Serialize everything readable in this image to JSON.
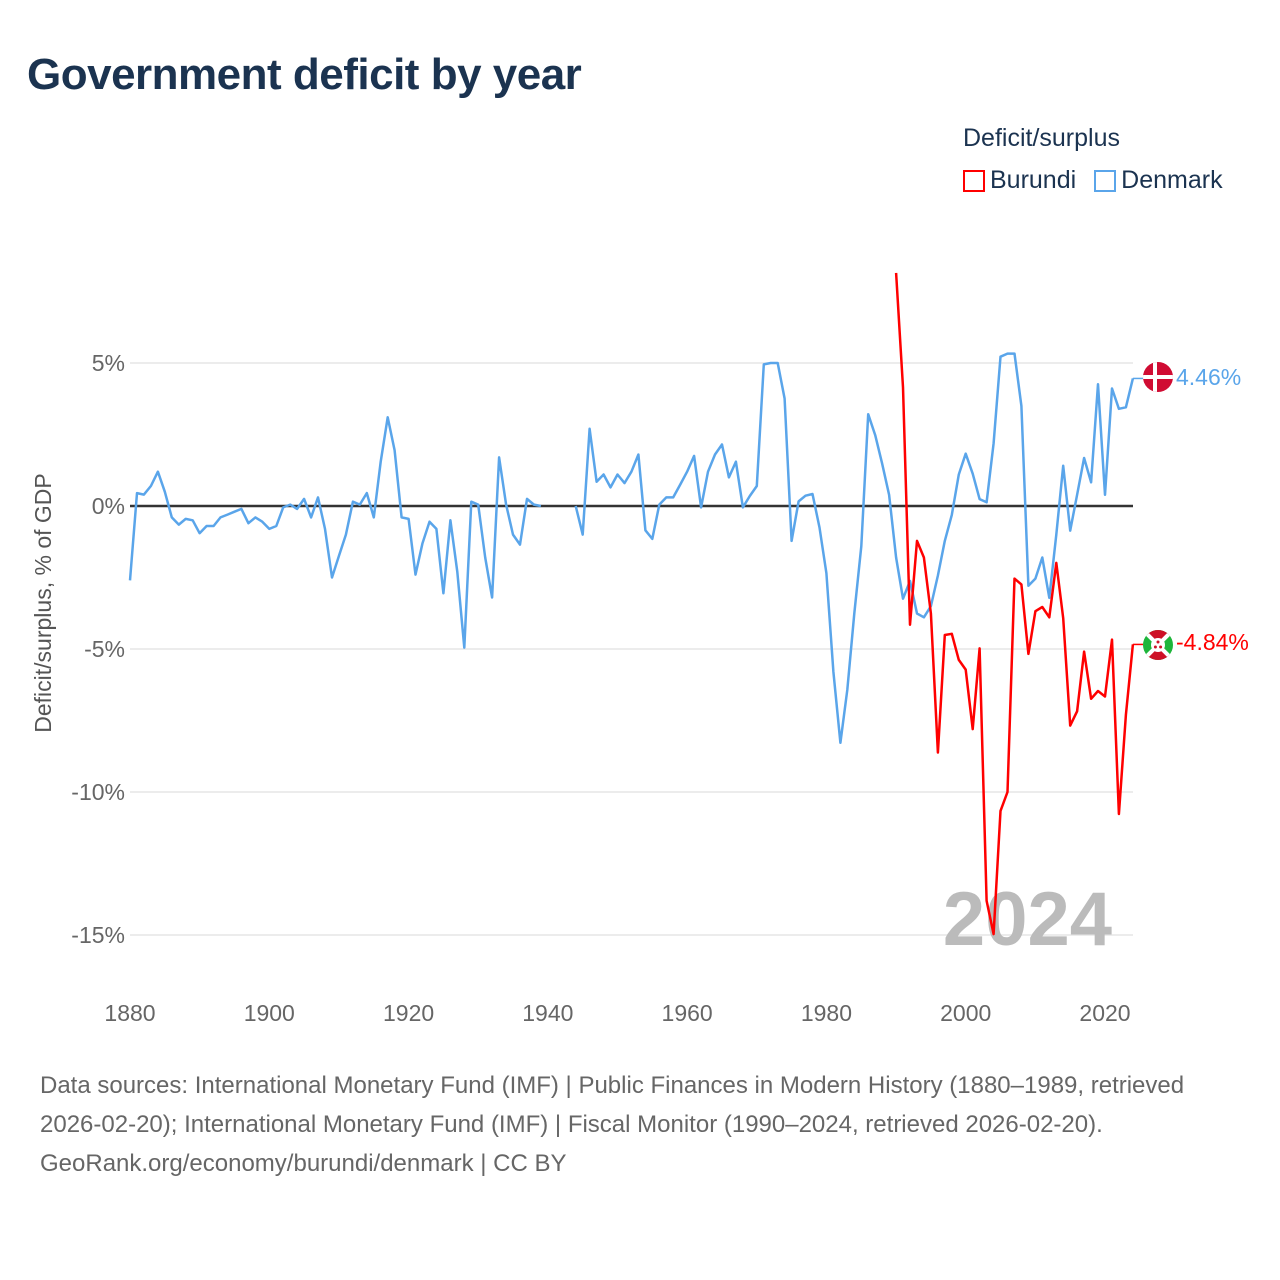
{
  "title": "Government deficit by year",
  "legend": {
    "title": "Deficit/surplus",
    "items": [
      {
        "label": "Burundi",
        "color": "#ff0000"
      },
      {
        "label": "Denmark",
        "color": "#5aa5ea"
      }
    ]
  },
  "year_watermark": "2024",
  "footer": {
    "sources": "Data sources: International Monetary Fund (IMF) | Public Finances in Modern History (1880–1989, retrieved 2026-02-20); International Monetary Fund (IMF) | Fiscal Monitor (1990–2024, retrieved 2026-02-20).",
    "credit": "GeoRank.org/economy/burundi/denmark | CC BY"
  },
  "chart_data": {
    "type": "line",
    "title": "Government deficit by year",
    "xlabel": "",
    "ylabel": "Deficit/surplus, % of GDP",
    "xlim": [
      1880,
      2024
    ],
    "ylim": [
      -15,
      8.2
    ],
    "x_ticks": [
      1880,
      1900,
      1920,
      1940,
      1960,
      1980,
      2000,
      2020
    ],
    "x_tick_labels": [
      "1880",
      "1900",
      "1920",
      "1940",
      "1960",
      "1980",
      "2000",
      "2020"
    ],
    "y_ticks": [
      5,
      0,
      -5,
      -10,
      -15
    ],
    "y_tick_labels": [
      "5%",
      "0%",
      "-5%",
      "-10%",
      "-15%"
    ],
    "grid": true,
    "legend_position": "top-right",
    "series": [
      {
        "name": "Denmark",
        "color": "#5aa5ea",
        "end_label": "4.46%",
        "start_year": 1880,
        "values": [
          -2.6,
          0.45,
          0.4,
          0.7,
          1.2,
          0.5,
          -0.4,
          -0.65,
          -0.45,
          -0.5,
          -0.95,
          -0.7,
          -0.7,
          -0.4,
          -0.3,
          -0.2,
          -0.1,
          -0.6,
          -0.4,
          -0.55,
          -0.8,
          -0.7,
          -0.05,
          0.05,
          -0.1,
          0.25,
          -0.4,
          0.3,
          -0.8,
          -2.5,
          -1.75,
          -1.0,
          0.15,
          0.05,
          0.45,
          -0.4,
          1.55,
          3.1,
          1.95,
          -0.4,
          -0.45,
          -2.4,
          -1.3,
          -0.55,
          -0.8,
          -3.05,
          -0.5,
          -2.3,
          -4.95,
          0.15,
          0.05,
          -1.8,
          -3.2,
          1.7,
          0.05,
          -1.0,
          -1.35,
          0.25,
          0.05,
          0.0,
          null,
          null,
          null,
          null,
          0.0,
          -1.0,
          2.7,
          0.85,
          1.1,
          0.65,
          1.1,
          0.8,
          1.2,
          1.8,
          -0.85,
          -1.15,
          0.05,
          0.3,
          0.3,
          0.75,
          1.2,
          1.75,
          -0.05,
          1.2,
          1.8,
          2.15,
          1.0,
          1.55,
          -0.05,
          0.35,
          0.7,
          4.95,
          5.0,
          5.0,
          3.76,
          -1.22,
          0.16,
          0.36,
          0.42,
          -0.75,
          -2.35,
          -5.8,
          -8.28,
          -6.43,
          -3.76,
          -1.41,
          3.21,
          2.48,
          1.49,
          0.39,
          -1.8,
          -3.24,
          -2.62,
          -3.76,
          -3.89,
          -3.5,
          -2.43,
          -1.22,
          -0.31,
          1.1,
          1.83,
          1.13,
          0.24,
          0.13,
          2.19,
          5.22,
          5.33,
          5.33,
          3.5,
          -2.79,
          -2.54,
          -1.8,
          -3.21,
          -1.0,
          1.41,
          -0.86,
          0.39,
          1.68,
          0.83,
          4.26,
          0.39,
          4.11,
          3.4,
          3.45,
          4.46
        ]
      },
      {
        "name": "Burundi",
        "color": "#ff0000",
        "end_label": "-4.84%",
        "start_year": 1990,
        "values": [
          8.15,
          4.15,
          -4.15,
          -1.22,
          -1.8,
          -3.76,
          -8.62,
          -4.51,
          -4.47,
          -5.38,
          -5.72,
          -7.8,
          -4.98,
          -13.8,
          -14.97,
          -10.66,
          -10.0,
          -2.54,
          -2.74,
          -5.17,
          -3.68,
          -3.53,
          -3.89,
          -1.99,
          -3.92,
          -7.68,
          -7.18,
          -5.09,
          -6.74,
          -6.47,
          -6.66,
          -4.67,
          -10.77,
          -7.3,
          -4.84
        ]
      }
    ]
  }
}
